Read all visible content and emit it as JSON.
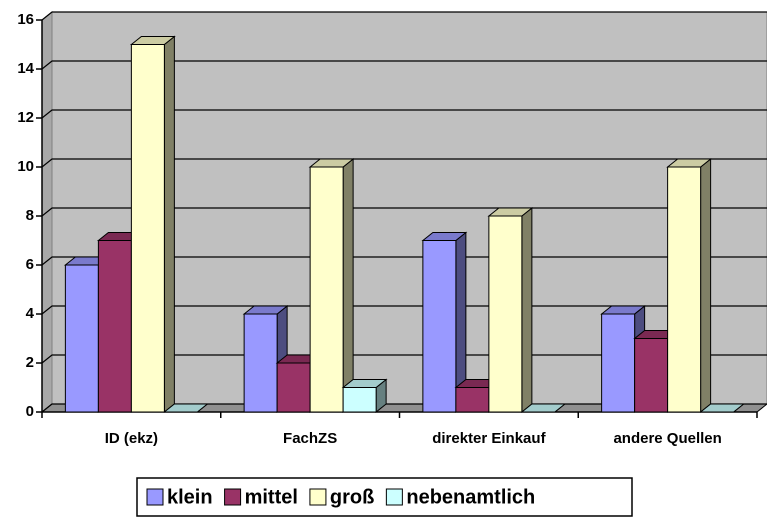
{
  "chart_data": {
    "type": "bar3d",
    "categories": [
      "ID (ekz)",
      "FachZS",
      "direkter Einkauf",
      "andere Quellen"
    ],
    "series": [
      {
        "name": "klein",
        "color": "#9999FF",
        "values": [
          6,
          4,
          7,
          4
        ]
      },
      {
        "name": "mittel",
        "color": "#993366",
        "values": [
          7,
          2,
          1,
          3
        ]
      },
      {
        "name": "groß",
        "color": "#FFFFCC",
        "values": [
          15,
          10,
          8,
          10
        ]
      },
      {
        "name": "nebenamtlich",
        "color": "#CCFFFF",
        "values": [
          0,
          1,
          0,
          0
        ]
      }
    ],
    "ylim": [
      0,
      16
    ],
    "yticks": [
      0,
      2,
      4,
      6,
      8,
      10,
      12,
      14,
      16
    ],
    "grid": true,
    "legend": "bottom"
  }
}
